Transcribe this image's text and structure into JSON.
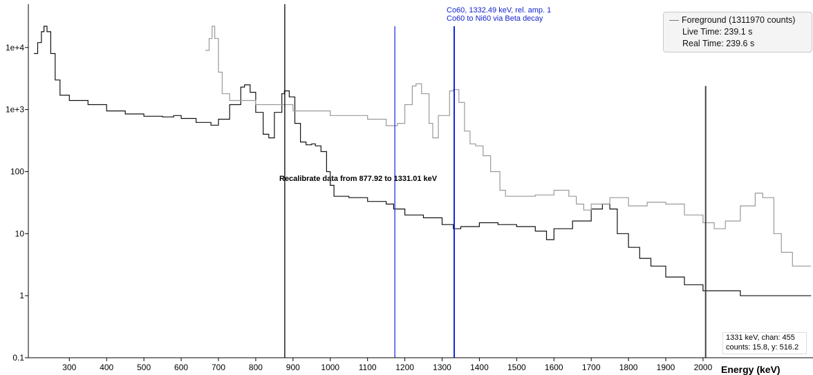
{
  "chart_data": {
    "type": "line",
    "xlabel": "Energy (keV)",
    "yscale": "log",
    "xlim": [
      190,
      2295
    ],
    "ylim": [
      0.1,
      50000
    ],
    "x_ticks": [
      300,
      400,
      500,
      600,
      700,
      800,
      900,
      1000,
      1100,
      1200,
      1300,
      1400,
      1500,
      1600,
      1700,
      1800,
      1900,
      2000
    ],
    "y_ticks": [
      {
        "value": 0.1,
        "label": "0.1"
      },
      {
        "value": 1,
        "label": "1"
      },
      {
        "value": 10,
        "label": "10"
      },
      {
        "value": 100,
        "label": "100"
      },
      {
        "value": 1000,
        "label": "1e+3"
      },
      {
        "value": 10000,
        "label": "1e+4"
      }
    ],
    "series": [
      {
        "name": "Foreground (1311970 counts)",
        "color": "#111111",
        "points": [
          [
            205,
            8000
          ],
          [
            215,
            12000
          ],
          [
            225,
            18000
          ],
          [
            232,
            22000
          ],
          [
            240,
            18000
          ],
          [
            250,
            8000
          ],
          [
            262,
            3000
          ],
          [
            275,
            1700
          ],
          [
            300,
            1400
          ],
          [
            350,
            1200
          ],
          [
            400,
            950
          ],
          [
            450,
            850
          ],
          [
            500,
            780
          ],
          [
            550,
            760
          ],
          [
            580,
            800
          ],
          [
            600,
            720
          ],
          [
            640,
            620
          ],
          [
            680,
            560
          ],
          [
            700,
            700
          ],
          [
            730,
            1200
          ],
          [
            760,
            2300
          ],
          [
            770,
            2500
          ],
          [
            785,
            1900
          ],
          [
            800,
            900
          ],
          [
            820,
            400
          ],
          [
            835,
            350
          ],
          [
            850,
            900
          ],
          [
            870,
            1800
          ],
          [
            877,
            2000
          ],
          [
            890,
            1600
          ],
          [
            905,
            600
          ],
          [
            920,
            300
          ],
          [
            935,
            270
          ],
          [
            950,
            280
          ],
          [
            960,
            260
          ],
          [
            975,
            210
          ],
          [
            990,
            100
          ],
          [
            1000,
            60
          ],
          [
            1010,
            40
          ],
          [
            1050,
            38
          ],
          [
            1100,
            33
          ],
          [
            1150,
            30
          ],
          [
            1170,
            25
          ],
          [
            1200,
            20
          ],
          [
            1250,
            18
          ],
          [
            1300,
            14
          ],
          [
            1330,
            12
          ],
          [
            1350,
            13
          ],
          [
            1400,
            15
          ],
          [
            1450,
            14
          ],
          [
            1500,
            13
          ],
          [
            1550,
            11
          ],
          [
            1580,
            8
          ],
          [
            1600,
            12
          ],
          [
            1650,
            16
          ],
          [
            1700,
            25
          ],
          [
            1730,
            30
          ],
          [
            1750,
            25
          ],
          [
            1770,
            10
          ],
          [
            1800,
            6
          ],
          [
            1830,
            4
          ],
          [
            1860,
            3
          ],
          [
            1900,
            2
          ],
          [
            1950,
            1.5
          ],
          [
            2000,
            1.2
          ],
          [
            2100,
            1
          ],
          [
            2200,
            1
          ],
          [
            2290,
            1
          ]
        ]
      },
      {
        "name": "",
        "color": "#999999",
        "points": [
          [
            665,
            9000
          ],
          [
            675,
            14000
          ],
          [
            683,
            22000
          ],
          [
            690,
            14000
          ],
          [
            700,
            4000
          ],
          [
            710,
            1800
          ],
          [
            730,
            1400
          ],
          [
            800,
            1200
          ],
          [
            900,
            950
          ],
          [
            1000,
            800
          ],
          [
            1100,
            700
          ],
          [
            1150,
            550
          ],
          [
            1180,
            600
          ],
          [
            1200,
            1200
          ],
          [
            1220,
            2400
          ],
          [
            1230,
            2600
          ],
          [
            1245,
            1800
          ],
          [
            1265,
            600
          ],
          [
            1275,
            350
          ],
          [
            1290,
            800
          ],
          [
            1320,
            2000
          ],
          [
            1330,
            2100
          ],
          [
            1345,
            1300
          ],
          [
            1360,
            450
          ],
          [
            1375,
            280
          ],
          [
            1390,
            260
          ],
          [
            1410,
            180
          ],
          [
            1430,
            100
          ],
          [
            1455,
            50
          ],
          [
            1470,
            40
          ],
          [
            1500,
            40
          ],
          [
            1550,
            42
          ],
          [
            1600,
            50
          ],
          [
            1640,
            40
          ],
          [
            1660,
            30
          ],
          [
            1680,
            24
          ],
          [
            1700,
            30
          ],
          [
            1750,
            38
          ],
          [
            1800,
            28
          ],
          [
            1850,
            32
          ],
          [
            1900,
            30
          ],
          [
            1950,
            20
          ],
          [
            2000,
            15
          ],
          [
            2030,
            12
          ],
          [
            2060,
            16
          ],
          [
            2100,
            28
          ],
          [
            2140,
            45
          ],
          [
            2160,
            38
          ],
          [
            2190,
            10
          ],
          [
            2210,
            5
          ],
          [
            2240,
            3
          ],
          [
            2290,
            3
          ]
        ]
      }
    ],
    "spike": {
      "x": 2007,
      "y": 2400
    },
    "vertical_lines": [
      {
        "x": 877.92,
        "color": "#000000"
      },
      {
        "x": 1173.2,
        "color": "#2233dd"
      },
      {
        "x": 1332.49,
        "color": "#1122dd"
      }
    ],
    "annotations": [
      {
        "text": "Recalibrate data from 877.92 to 1331.01 keV",
        "color": "#000000"
      },
      {
        "text": "Co60, 1332.49 keV, rel. amp. 1",
        "color": "#1122cc"
      },
      {
        "text": "Co60 to Ni60 via Beta decay",
        "color": "#1122cc"
      }
    ],
    "legend": {
      "placement": "top-right",
      "entry": "Foreground (1311970 counts)",
      "live_time": "Live Time: 239.1 s",
      "real_time": "Real Time: 239.6 s"
    },
    "readout": {
      "line1": "1331 keV, chan: 455",
      "line2": "counts: 15.8, y: 516.2"
    }
  }
}
